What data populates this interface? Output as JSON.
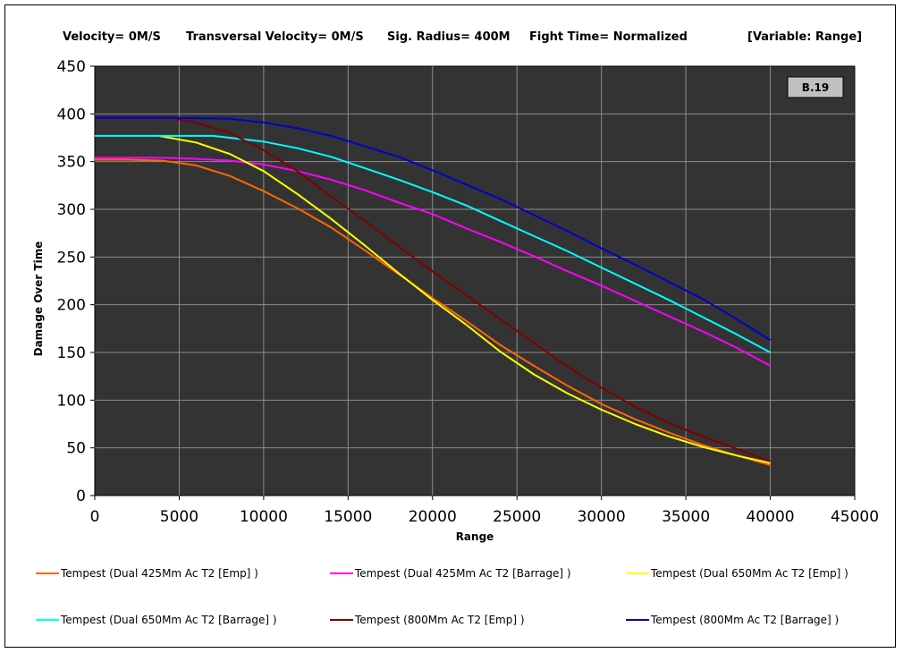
{
  "header": {
    "velocity": "Velocity= 0M/S",
    "transversal_velocity": "Transversal Velocity= 0M/S",
    "sig_radius": "Sig. Radius= 400M",
    "fight_time": "Fight Time= Normalized",
    "variable": "[Variable: Range]"
  },
  "badge": "B.19",
  "chart_data": {
    "type": "line",
    "title": "",
    "xlabel": "Range",
    "ylabel": "Damage Over Time",
    "xlim": [
      0,
      45000
    ],
    "ylim": [
      0,
      450
    ],
    "xticks": [
      0,
      5000,
      10000,
      15000,
      20000,
      25000,
      30000,
      35000,
      40000,
      45000
    ],
    "yticks": [
      0,
      50,
      100,
      150,
      200,
      250,
      300,
      350,
      400,
      450
    ],
    "grid": true,
    "legend_position": "bottom",
    "series": [
      {
        "name": "Tempest (Dual 425Mm Ac T2 [Emp] )",
        "color": "#ff6600",
        "x": [
          0,
          2000,
          4000,
          6000,
          8000,
          10000,
          12000,
          14000,
          16000,
          18000,
          20000,
          22000,
          24000,
          26000,
          28000,
          30000,
          32000,
          34000,
          36000,
          38000,
          40000
        ],
        "y": [
          352,
          352,
          351,
          346,
          335,
          319,
          301,
          281,
          257,
          232,
          207,
          183,
          158,
          136,
          115,
          96,
          80,
          66,
          53,
          42,
          32
        ]
      },
      {
        "name": "Tempest (Dual 425Mm Ac T2 [Barrage] )",
        "color": "#ff00ff",
        "x": [
          0,
          4000,
          6000,
          8000,
          10000,
          12000,
          14000,
          16000,
          18000,
          20000,
          22000,
          24000,
          26000,
          28000,
          30000,
          32000,
          34000,
          36000,
          38000,
          40000
        ],
        "y": [
          354,
          354,
          353,
          351,
          347,
          340,
          331,
          320,
          307,
          295,
          280,
          266,
          251,
          235,
          220,
          204,
          188,
          172,
          155,
          136
        ]
      },
      {
        "name": "Tempest (Dual 650Mm Ac T2 [Emp] )",
        "color": "#ffff00",
        "x": [
          3800,
          6000,
          8000,
          10000,
          12000,
          14000,
          16000,
          18000,
          20000,
          22000,
          24000,
          26000,
          28000,
          30000,
          32000,
          34000,
          36000,
          38000,
          40000
        ],
        "y": [
          377,
          370,
          358,
          340,
          316,
          290,
          262,
          233,
          205,
          179,
          151,
          127,
          107,
          90,
          75,
          62,
          51,
          42,
          34
        ]
      },
      {
        "name": "Tempest (Dual 650Mm Ac T2 [Barrage] )",
        "color": "#00ffff",
        "x": [
          0,
          4000,
          7000,
          10000,
          12000,
          14000,
          16000,
          18000,
          20000,
          22000,
          24000,
          26000,
          28000,
          30000,
          32000,
          34000,
          36000,
          38000,
          40000
        ],
        "y": [
          377,
          377,
          377,
          371,
          364,
          355,
          343,
          331,
          318,
          304,
          288,
          272,
          256,
          239,
          222,
          205,
          187,
          169,
          150
        ]
      },
      {
        "name": "Tempest (800Mm Ac T2 [Emp] )",
        "color": "#800000",
        "x": [
          0,
          4500,
          6000,
          8000,
          10000,
          12000,
          14000,
          16000,
          18000,
          20000,
          22000,
          24000,
          26000,
          28000,
          30000,
          32000,
          34000,
          36000,
          38000,
          40000
        ],
        "y": [
          396,
          396,
          391,
          380,
          362,
          340,
          313,
          288,
          261,
          235,
          210,
          185,
          160,
          135,
          113,
          93,
          76,
          62,
          49,
          36
        ]
      },
      {
        "name": "Tempest (800Mm Ac T2 [Barrage] )",
        "color": "#0000cc",
        "x": [
          0,
          4000,
          8000,
          10000,
          12000,
          14000,
          16000,
          18000,
          20000,
          22000,
          24000,
          26000,
          28000,
          30000,
          32000,
          34000,
          36000,
          38000,
          40000
        ],
        "y": [
          396,
          396,
          395,
          391,
          385,
          377,
          366,
          355,
          341,
          326,
          311,
          294,
          277,
          259,
          242,
          224,
          206,
          185,
          163
        ]
      }
    ]
  }
}
